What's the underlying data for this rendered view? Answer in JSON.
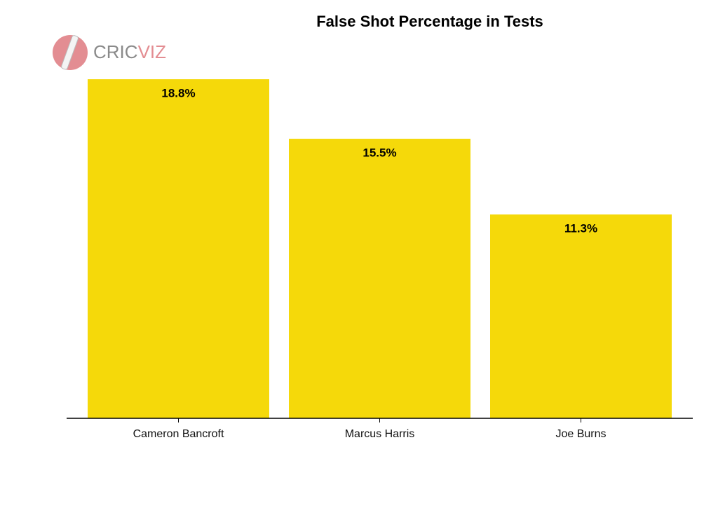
{
  "chart_data": {
    "type": "bar",
    "title": "False Shot Percentage in Tests",
    "brand": [
      "CRIC",
      "VIZ"
    ],
    "categories": [
      "Cameron Bancroft",
      "Marcus Harris",
      "Joe Burns"
    ],
    "values": [
      18.8,
      15.5,
      11.3
    ],
    "value_labels": [
      "18.8%",
      "15.5%",
      "11.3%"
    ],
    "color": "#f5d90a"
  }
}
